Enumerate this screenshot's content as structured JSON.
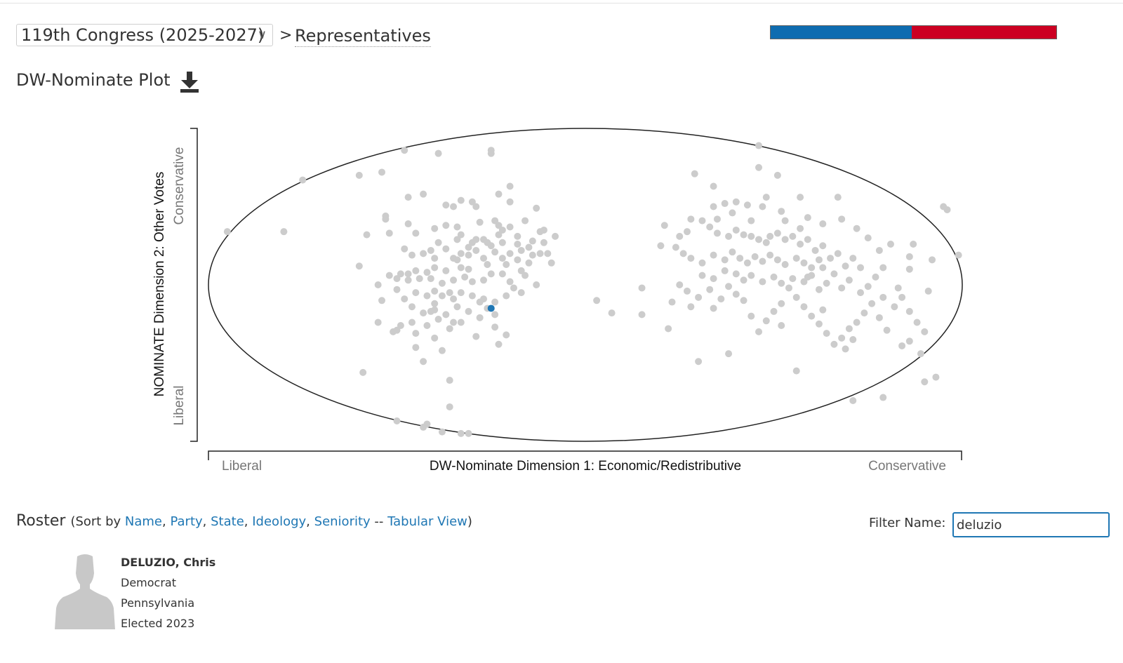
{
  "header": {
    "congress_select": "119th Congress (2025-2027)",
    "breadcrumb_sep": ">",
    "chamber_link": "Representatives",
    "party_split": [
      {
        "party": "Democrat",
        "fraction": 0.493,
        "color": "#0e6cb0"
      },
      {
        "party": "Republican",
        "fraction": 0.507,
        "color": "#cc0022"
      }
    ]
  },
  "plot": {
    "title": "DW-Nominate Plot",
    "download_icon": "download-icon"
  },
  "chart_data": {
    "type": "scatter",
    "title": "DW-Nominate Plot",
    "xlabel": "DW-Nominate Dimension 1: Economic/Redistributive",
    "ylabel": "NOMINATE Dimension 2: Other Votes",
    "x_left_label": "Liberal",
    "x_right_label": "Conservative",
    "y_bottom_label": "Liberal",
    "y_top_label": "Conservative",
    "xlim": [
      -1,
      1
    ],
    "ylim": [
      -1,
      1
    ],
    "grid": false,
    "boundary": "unit ellipse",
    "point_color": "#cccccc",
    "highlight_color": "#1f77b4",
    "highlight": {
      "name": "DELUZIO, Chris",
      "x": -0.25,
      "y": -0.15
    },
    "points": [
      [
        -0.48,
        0.86
      ],
      [
        -0.39,
        0.84
      ],
      [
        -0.25,
        0.86
      ],
      [
        -0.25,
        0.84
      ],
      [
        -0.54,
        0.72
      ],
      [
        -0.6,
        0.7
      ],
      [
        -0.75,
        0.67
      ],
      [
        -0.43,
        0.58
      ],
      [
        -0.47,
        0.56
      ],
      [
        -0.2,
        0.63
      ],
      [
        -0.23,
        0.58
      ],
      [
        -0.37,
        0.51
      ],
      [
        -0.33,
        0.54
      ],
      [
        -0.35,
        0.5
      ],
      [
        -0.3,
        0.53
      ],
      [
        -0.29,
        0.5
      ],
      [
        -0.2,
        0.53
      ],
      [
        -0.13,
        0.49
      ],
      [
        -0.53,
        0.44
      ],
      [
        -0.53,
        0.42
      ],
      [
        -0.47,
        0.39
      ],
      [
        -0.4,
        0.36
      ],
      [
        -0.37,
        0.38
      ],
      [
        -0.34,
        0.37
      ],
      [
        -0.33,
        0.32
      ],
      [
        -0.28,
        0.4
      ],
      [
        -0.24,
        0.41
      ],
      [
        -0.22,
        0.35
      ],
      [
        -0.2,
        0.37
      ],
      [
        -0.16,
        0.41
      ],
      [
        -0.11,
        0.35
      ],
      [
        -0.08,
        0.31
      ],
      [
        -0.11,
        0.27
      ],
      [
        -0.15,
        0.24
      ],
      [
        -0.18,
        0.31
      ],
      [
        -0.23,
        0.32
      ],
      [
        -0.26,
        0.27
      ],
      [
        -0.29,
        0.29
      ],
      [
        -0.31,
        0.24
      ],
      [
        -0.34,
        0.29
      ],
      [
        -0.39,
        0.27
      ],
      [
        -0.41,
        0.22
      ],
      [
        -0.45,
        0.33
      ],
      [
        -0.52,
        0.33
      ],
      [
        -0.8,
        0.34
      ],
      [
        -0.95,
        0.34
      ],
      [
        -0.52,
        0.06
      ],
      [
        -0.5,
        0.04
      ],
      [
        -0.6,
        0.12
      ],
      [
        -0.55,
        0.0
      ],
      [
        -0.54,
        -0.1
      ],
      [
        -0.55,
        -0.24
      ],
      [
        -0.59,
        -0.56
      ],
      [
        -0.58,
        0.32
      ],
      [
        -0.48,
        0.23
      ],
      [
        -0.46,
        0.19
      ],
      [
        -0.43,
        0.2
      ],
      [
        -0.4,
        0.17
      ],
      [
        -0.37,
        0.23
      ],
      [
        -0.35,
        0.17
      ],
      [
        -0.33,
        0.2
      ],
      [
        -0.31,
        0.19
      ],
      [
        -0.29,
        0.22
      ],
      [
        -0.27,
        0.17
      ],
      [
        -0.24,
        0.21
      ],
      [
        -0.22,
        0.17
      ],
      [
        -0.2,
        0.2
      ],
      [
        -0.18,
        0.16
      ],
      [
        -0.17,
        0.22
      ],
      [
        -0.15,
        0.14
      ],
      [
        -0.14,
        0.19
      ],
      [
        -0.12,
        0.2
      ],
      [
        -0.22,
        0.27
      ],
      [
        -0.25,
        0.25
      ],
      [
        -0.27,
        0.29
      ],
      [
        -0.3,
        0.27
      ],
      [
        -0.33,
        0.11
      ],
      [
        -0.37,
        0.09
      ],
      [
        -0.4,
        0.11
      ],
      [
        -0.42,
        0.08
      ],
      [
        -0.45,
        0.09
      ],
      [
        -0.49,
        0.07
      ],
      [
        -0.47,
        0.03
      ],
      [
        -0.44,
        0.04
      ],
      [
        -0.41,
        0.04
      ],
      [
        -0.38,
        0.01
      ],
      [
        -0.35,
        0.03
      ],
      [
        -0.32,
        0.05
      ],
      [
        -0.3,
        0.02
      ],
      [
        -0.27,
        0.03
      ],
      [
        -0.25,
        0.07
      ],
      [
        -0.22,
        0.07
      ],
      [
        -0.2,
        0.02
      ],
      [
        -0.19,
        -0.02
      ],
      [
        -0.21,
        -0.07
      ],
      [
        -0.24,
        -0.11
      ],
      [
        -0.27,
        -0.09
      ],
      [
        -0.3,
        -0.07
      ],
      [
        -0.33,
        -0.05
      ],
      [
        -0.35,
        -0.09
      ],
      [
        -0.38,
        -0.07
      ],
      [
        -0.4,
        -0.04
      ],
      [
        -0.42,
        -0.07
      ],
      [
        -0.45,
        -0.05
      ],
      [
        -0.48,
        -0.09
      ],
      [
        -0.5,
        -0.03
      ],
      [
        -0.46,
        -0.14
      ],
      [
        -0.43,
        -0.18
      ],
      [
        -0.4,
        -0.16
      ],
      [
        -0.37,
        -0.19
      ],
      [
        -0.34,
        -0.14
      ],
      [
        -0.31,
        -0.17
      ],
      [
        -0.28,
        -0.11
      ],
      [
        -0.26,
        -0.15
      ],
      [
        -0.24,
        -0.19
      ],
      [
        -0.28,
        -0.21
      ],
      [
        -0.33,
        -0.24
      ],
      [
        -0.36,
        -0.28
      ],
      [
        -0.39,
        -0.22
      ],
      [
        -0.42,
        -0.26
      ],
      [
        -0.46,
        -0.24
      ],
      [
        -0.5,
        -0.29
      ],
      [
        -0.45,
        -0.31
      ],
      [
        -0.4,
        -0.34
      ],
      [
        -0.38,
        -0.42
      ],
      [
        -0.43,
        -0.49
      ],
      [
        -0.45,
        -0.4
      ],
      [
        -0.41,
        -0.17
      ],
      [
        -0.17,
        -0.05
      ],
      [
        -0.17,
        0.09
      ],
      [
        -0.31,
        0.1
      ],
      [
        -0.24,
        -0.27
      ],
      [
        -0.29,
        -0.33
      ],
      [
        -0.35,
        -0.24
      ],
      [
        -0.36,
        -0.05
      ],
      [
        -0.51,
        -0.3
      ],
      [
        -0.49,
        -0.26
      ],
      [
        -0.36,
        -0.61
      ],
      [
        -0.5,
        -0.87
      ],
      [
        -0.43,
        -0.91
      ],
      [
        -0.42,
        -0.89
      ],
      [
        -0.38,
        -0.94
      ],
      [
        -0.33,
        -0.95
      ],
      [
        -0.31,
        -0.95
      ],
      [
        -0.36,
        -0.78
      ],
      [
        -0.21,
        -0.32
      ],
      [
        -0.23,
        -0.38
      ],
      [
        -0.4,
        -0.12
      ],
      [
        -0.34,
        0.16
      ],
      [
        -0.26,
        0.13
      ],
      [
        -0.21,
        0.13
      ],
      [
        -0.18,
        0.26
      ],
      [
        -0.14,
        0.28
      ],
      [
        -0.12,
        0.34
      ],
      [
        -0.1,
        0.2
      ],
      [
        -0.16,
        0.06
      ],
      [
        -0.13,
        0.0
      ],
      [
        -0.09,
        0.14
      ],
      [
        -0.23,
        0.38
      ],
      [
        -0.47,
        0.07
      ],
      [
        0.46,
        0.89
      ],
      [
        0.46,
        0.75
      ],
      [
        0.51,
        0.7
      ],
      [
        0.29,
        0.71
      ],
      [
        0.34,
        0.63
      ],
      [
        0.48,
        0.56
      ],
      [
        0.57,
        0.56
      ],
      [
        0.67,
        0.56
      ],
      [
        0.34,
        0.5
      ],
      [
        0.37,
        0.52
      ],
      [
        0.4,
        0.53
      ],
      [
        0.43,
        0.51
      ],
      [
        0.47,
        0.5
      ],
      [
        0.52,
        0.47
      ],
      [
        0.59,
        0.43
      ],
      [
        0.63,
        0.39
      ],
      [
        0.68,
        0.42
      ],
      [
        0.72,
        0.36
      ],
      [
        0.81,
        0.26
      ],
      [
        0.75,
        0.3
      ],
      [
        0.78,
        0.22
      ],
      [
        0.86,
        0.18
      ],
      [
        0.92,
        0.16
      ],
      [
        0.87,
        0.26
      ],
      [
        0.95,
        0.5
      ],
      [
        0.96,
        0.48
      ],
      [
        0.99,
        0.19
      ],
      [
        0.21,
        0.38
      ],
      [
        0.2,
        0.25
      ],
      [
        0.24,
        0.24
      ],
      [
        0.25,
        0.31
      ],
      [
        0.26,
        0.2
      ],
      [
        0.27,
        0.34
      ],
      [
        0.28,
        0.42
      ],
      [
        0.31,
        0.41
      ],
      [
        0.33,
        0.37
      ],
      [
        0.35,
        0.33
      ],
      [
        0.38,
        0.31
      ],
      [
        0.4,
        0.35
      ],
      [
        0.42,
        0.32
      ],
      [
        0.44,
        0.31
      ],
      [
        0.46,
        0.29
      ],
      [
        0.48,
        0.27
      ],
      [
        0.49,
        0.31
      ],
      [
        0.51,
        0.33
      ],
      [
        0.53,
        0.29
      ],
      [
        0.55,
        0.31
      ],
      [
        0.57,
        0.26
      ],
      [
        0.59,
        0.29
      ],
      [
        0.61,
        0.22
      ],
      [
        0.63,
        0.25
      ],
      [
        0.65,
        0.17
      ],
      [
        0.67,
        0.2
      ],
      [
        0.69,
        0.12
      ],
      [
        0.71,
        0.17
      ],
      [
        0.73,
        0.11
      ],
      [
        0.28,
        0.17
      ],
      [
        0.31,
        0.14
      ],
      [
        0.34,
        0.19
      ],
      [
        0.37,
        0.16
      ],
      [
        0.39,
        0.21
      ],
      [
        0.41,
        0.17
      ],
      [
        0.43,
        0.14
      ],
      [
        0.45,
        0.18
      ],
      [
        0.47,
        0.15
      ],
      [
        0.49,
        0.19
      ],
      [
        0.51,
        0.16
      ],
      [
        0.53,
        0.13
      ],
      [
        0.56,
        0.17
      ],
      [
        0.58,
        0.14
      ],
      [
        0.6,
        0.11
      ],
      [
        0.62,
        0.16
      ],
      [
        0.31,
        0.06
      ],
      [
        0.34,
        0.04
      ],
      [
        0.37,
        0.09
      ],
      [
        0.4,
        0.07
      ],
      [
        0.42,
        0.03
      ],
      [
        0.44,
        0.06
      ],
      [
        0.47,
        0.02
      ],
      [
        0.5,
        0.05
      ],
      [
        0.52,
        0.01
      ],
      [
        0.55,
        0.04
      ],
      [
        0.58,
        0.02
      ],
      [
        0.6,
        0.06
      ],
      [
        0.62,
        -0.03
      ],
      [
        0.64,
        0.01
      ],
      [
        0.66,
        0.07
      ],
      [
        0.68,
        -0.02
      ],
      [
        0.7,
        0.03
      ],
      [
        0.73,
        -0.05
      ],
      [
        0.75,
        -0.01
      ],
      [
        0.77,
        0.05
      ],
      [
        0.79,
        -0.08
      ],
      [
        0.82,
        -0.14
      ],
      [
        0.84,
        -0.08
      ],
      [
        0.86,
        -0.17
      ],
      [
        0.88,
        -0.24
      ],
      [
        0.9,
        -0.3
      ],
      [
        0.86,
        -0.36
      ],
      [
        0.8,
        -0.29
      ],
      [
        0.78,
        -0.21
      ],
      [
        0.76,
        -0.12
      ],
      [
        0.74,
        -0.18
      ],
      [
        0.72,
        -0.24
      ],
      [
        0.7,
        -0.28
      ],
      [
        0.68,
        -0.34
      ],
      [
        0.66,
        -0.38
      ],
      [
        0.69,
        -0.41
      ],
      [
        0.71,
        -0.35
      ],
      [
        0.64,
        -0.31
      ],
      [
        0.62,
        -0.25
      ],
      [
        0.6,
        -0.2
      ],
      [
        0.58,
        -0.14
      ],
      [
        0.56,
        -0.08
      ],
      [
        0.54,
        -0.02
      ],
      [
        0.52,
        -0.12
      ],
      [
        0.5,
        -0.17
      ],
      [
        0.48,
        -0.23
      ],
      [
        0.46,
        -0.3
      ],
      [
        0.44,
        -0.2
      ],
      [
        0.42,
        -0.1
      ],
      [
        0.4,
        -0.06
      ],
      [
        0.38,
        -0.01
      ],
      [
        0.36,
        -0.09
      ],
      [
        0.34,
        -0.15
      ],
      [
        0.33,
        -0.03
      ],
      [
        0.3,
        -0.08
      ],
      [
        0.28,
        -0.14
      ],
      [
        0.27,
        -0.04
      ],
      [
        0.25,
        0.0
      ],
      [
        0.23,
        -0.11
      ],
      [
        0.38,
        -0.44
      ],
      [
        0.3,
        -0.49
      ],
      [
        0.22,
        -0.28
      ],
      [
        0.15,
        -0.19
      ],
      [
        0.15,
        -0.02
      ],
      [
        0.07,
        -0.18
      ],
      [
        0.03,
        -0.1
      ],
      [
        0.56,
        -0.55
      ],
      [
        0.84,
        -0.39
      ],
      [
        0.89,
        -0.44
      ],
      [
        0.93,
        -0.59
      ],
      [
        0.79,
        -0.72
      ],
      [
        0.9,
        -0.62
      ],
      [
        0.71,
        -0.74
      ],
      [
        0.91,
        -0.04
      ],
      [
        0.83,
        -0.02
      ],
      [
        0.79,
        0.11
      ],
      [
        0.86,
        0.1
      ],
      [
        0.63,
        0.11
      ],
      [
        0.57,
        0.36
      ],
      [
        0.53,
        0.41
      ],
      [
        0.44,
        0.41
      ],
      [
        0.39,
        0.46
      ],
      [
        0.35,
        0.42
      ],
      [
        0.59,
        0.05
      ],
      [
        0.63,
        -0.16
      ],
      [
        0.52,
        -0.26
      ]
    ]
  },
  "roster": {
    "title": "Roster",
    "sort_open": "(Sort by ",
    "sort_name": "Name",
    "sort_party": "Party",
    "sort_state": "State",
    "sort_ideology": "Ideology",
    "sort_seniority": "Seniority",
    "sep": ",",
    "dash": " -- ",
    "tabular_view": "Tabular View",
    "sort_close": ")",
    "filter_label": "Filter Name:",
    "filter_value": "deluzio"
  },
  "member": {
    "name": "DELUZIO, Chris",
    "party": "Democrat",
    "state": "Pennsylvania",
    "elected": "Elected 2023"
  }
}
